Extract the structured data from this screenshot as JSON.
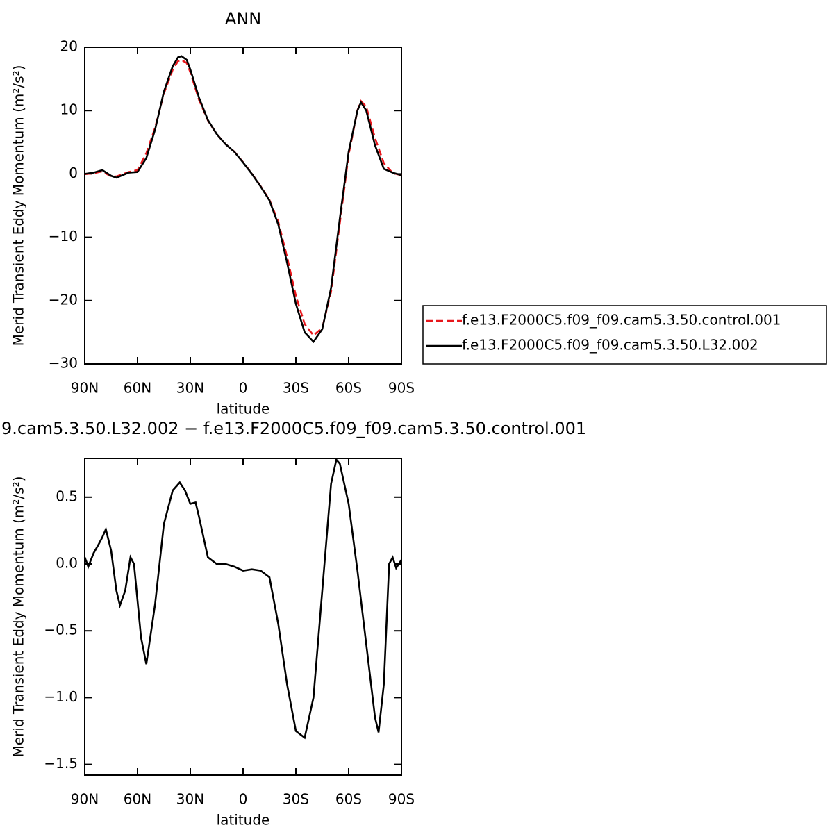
{
  "chart_data": [
    {
      "type": "line",
      "title": "ANN",
      "xlabel": "latitude",
      "ylabel": "Merid Transient Eddy Momentum (m²/s²)",
      "x": [
        90,
        85,
        80,
        75,
        72,
        65,
        60,
        55,
        50,
        45,
        40,
        37,
        35,
        32,
        30,
        25,
        20,
        15,
        10,
        5,
        0,
        -5,
        -10,
        -15,
        -20,
        -25,
        -30,
        -35,
        -40,
        -45,
        -50,
        -55,
        -60,
        -65,
        -67,
        -70,
        -75,
        -80,
        -85,
        -90
      ],
      "series": [
        {
          "name": "f.e13.F2000C5.f09_f09.cam5.3.50.control.001",
          "color": "#e8161b",
          "linestyle": "dashed",
          "values": [
            -0.05,
            0.1,
            0.4,
            -0.4,
            -0.4,
            0.3,
            0.6,
            3.25,
            7.3,
            12.7,
            16.45,
            17.8,
            18.0,
            17.5,
            16.05,
            11.65,
            8.45,
            6.3,
            4.7,
            3.52,
            1.85,
            0.04,
            -1.95,
            -4.1,
            -7.55,
            -13.1,
            -19.25,
            -23.7,
            -25.5,
            -24.3,
            -18.6,
            -7.75,
            3.05,
            10.05,
            11.5,
            10.6,
            5.65,
            1.7,
            0.15,
            -0.23
          ]
        },
        {
          "name": "f.e13.F2000C5.f09_f09.cam5.3.50.L32.002",
          "color": "#000000",
          "linestyle": "solid",
          "values": [
            0,
            0.2,
            0.6,
            -0.3,
            -0.6,
            0.2,
            0.3,
            2.5,
            7,
            13,
            17,
            18.4,
            18.6,
            18,
            16.5,
            12,
            8.5,
            6.3,
            4.7,
            3.5,
            1.8,
            0,
            -2,
            -4.2,
            -8,
            -14,
            -20.5,
            -25,
            -26.5,
            -24.5,
            -18,
            -7,
            3.5,
            10,
            11.3,
            10,
            4.5,
            0.8,
            0.2,
            -0.2
          ]
        }
      ],
      "xlim": [
        90,
        -90
      ],
      "xticks": [
        {
          "value": 90,
          "label": "90N"
        },
        {
          "value": 60,
          "label": "60N"
        },
        {
          "value": 30,
          "label": "30N"
        },
        0,
        {
          "value": -30,
          "label": "30S"
        },
        {
          "value": -60,
          "label": "60S"
        },
        {
          "value": -90,
          "label": "90S"
        }
      ],
      "ylim": [
        -30,
        20
      ],
      "yticks": [
        {
          "value": -30,
          "label": "−30"
        },
        {
          "value": -20,
          "label": "−20"
        },
        {
          "value": -10,
          "label": "−10"
        },
        0,
        10,
        20
      ],
      "legend": "right"
    },
    {
      "type": "line",
      "title": "9.cam5.3.50.L32.002 − f.e13.F2000C5.f09_f09.cam5.3.50.control.001",
      "xlabel": "latitude",
      "ylabel": "Merid Transient Eddy Momentum (m²/s²)",
      "x": [
        90,
        88,
        85,
        82,
        80,
        78,
        75,
        72,
        70,
        67,
        64,
        62,
        58,
        55,
        50,
        45,
        40,
        36,
        33,
        30,
        27,
        25,
        20,
        15,
        10,
        5,
        0,
        -5,
        -10,
        -15,
        -20,
        -25,
        -30,
        -35,
        -40,
        -45,
        -50,
        -53,
        -55,
        -60,
        -65,
        -70,
        -75,
        -77,
        -80,
        -83,
        -85,
        -87,
        -90
      ],
      "values": [
        0.05,
        -0.02,
        0.08,
        0.15,
        0.2,
        0.26,
        0.1,
        -0.2,
        -0.31,
        -0.2,
        0.05,
        0.0,
        -0.55,
        -0.75,
        -0.3,
        0.3,
        0.55,
        0.61,
        0.55,
        0.45,
        0.46,
        0.35,
        0.05,
        0.0,
        0.0,
        -0.02,
        -0.05,
        -0.04,
        -0.05,
        -0.1,
        -0.45,
        -0.9,
        -1.25,
        -1.3,
        -1.0,
        -0.2,
        0.6,
        0.78,
        0.75,
        0.45,
        -0.05,
        -0.6,
        -1.15,
        -1.26,
        -0.9,
        0.0,
        0.05,
        -0.03,
        0.03
      ],
      "color": "#000000",
      "xlim": [
        90,
        -90
      ],
      "xticks": [
        {
          "value": 90,
          "label": "90N"
        },
        {
          "value": 60,
          "label": "60N"
        },
        {
          "value": 30,
          "label": "30N"
        },
        0,
        {
          "value": -30,
          "label": "30S"
        },
        {
          "value": -60,
          "label": "60S"
        },
        {
          "value": -90,
          "label": "90S"
        }
      ],
      "ylim": [
        -1.58,
        0.79
      ],
      "yticks": [
        {
          "value": -1.5,
          "label": "−1.5"
        },
        {
          "value": -1.0,
          "label": "−1.0"
        },
        {
          "value": -0.5,
          "label": "−0.5"
        },
        {
          "value": 0,
          "label": "0.0"
        },
        0.5
      ]
    }
  ]
}
